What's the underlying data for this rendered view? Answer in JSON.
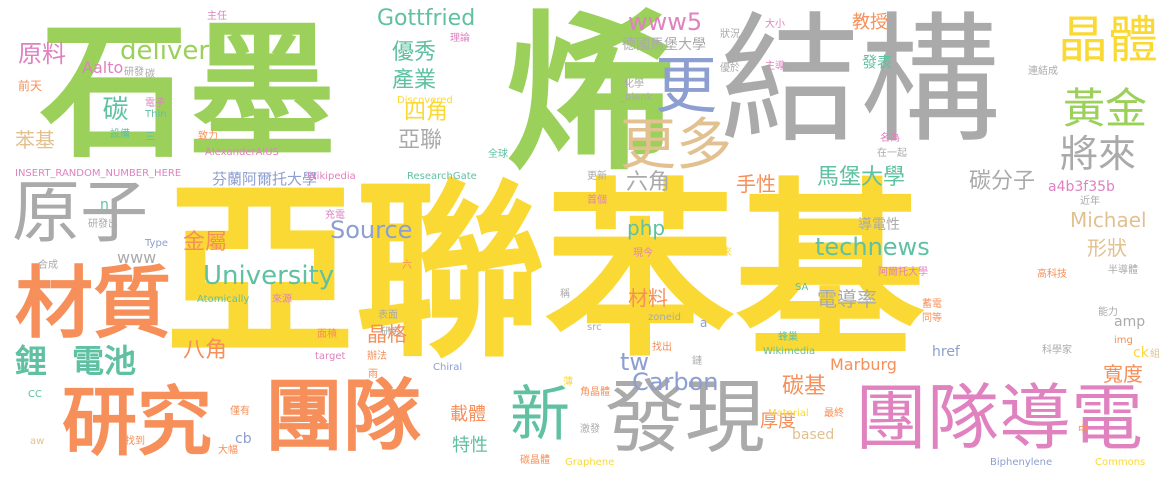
{
  "colors": {
    "green": "#9bd05a",
    "gray": "#aaaaaa",
    "yellow": "#fbd935",
    "orange": "#f68f59",
    "pink": "#e081c0",
    "blue": "#8d9ed0",
    "teal": "#5fc0a2",
    "tan": "#e2c190",
    "background": "#ffffff"
  },
  "words": [
    {
      "text": "亞聯苯基",
      "color": "yellow"
    },
    {
      "text": "石墨",
      "color": "green"
    },
    {
      "text": "烯",
      "color": "green"
    },
    {
      "text": "結構",
      "color": "gray"
    },
    {
      "text": "團隊",
      "color": "orange"
    },
    {
      "text": "團隊導電",
      "color": "pink"
    },
    {
      "text": "發現",
      "color": "gray"
    },
    {
      "text": "研究",
      "color": "orange"
    },
    {
      "text": "材質",
      "color": "orange"
    },
    {
      "text": "原子",
      "color": "gray"
    },
    {
      "text": "更",
      "color": "blue"
    },
    {
      "text": "更多",
      "color": "tan"
    },
    {
      "text": "晶體",
      "color": "yellow"
    },
    {
      "text": "黃金",
      "color": "green"
    },
    {
      "text": "將來",
      "color": "gray"
    },
    {
      "text": "新",
      "color": "teal"
    },
    {
      "text": "鋰",
      "color": "teal"
    },
    {
      "text": "電池",
      "color": "teal"
    },
    {
      "text": "delivery",
      "color": "green"
    },
    {
      "text": "原料",
      "color": "pink"
    },
    {
      "text": "苯基",
      "color": "tan"
    },
    {
      "text": "碳",
      "color": "teal"
    },
    {
      "text": "Aalto",
      "color": "pink"
    },
    {
      "text": "Gottfried",
      "color": "teal"
    },
    {
      "text": "www5",
      "color": "pink"
    },
    {
      "text": "優秀",
      "color": "teal"
    },
    {
      "text": "產業",
      "color": "teal"
    },
    {
      "text": "教授",
      "color": "orange"
    },
    {
      "text": "四角",
      "color": "yellow"
    },
    {
      "text": "亞聯",
      "color": "gray"
    },
    {
      "text": "六角",
      "color": "gray"
    },
    {
      "text": "手性",
      "color": "orange"
    },
    {
      "text": "馬堡大學",
      "color": "teal"
    },
    {
      "text": "碳分子",
      "color": "gray"
    },
    {
      "text": "a4b3f35b",
      "color": "pink"
    },
    {
      "text": "金屬",
      "color": "orange"
    },
    {
      "text": "Source",
      "color": "blue"
    },
    {
      "text": "php",
      "color": "teal"
    },
    {
      "text": "technews",
      "color": "teal"
    },
    {
      "text": "Michael",
      "color": "tan"
    },
    {
      "text": "形狀",
      "color": "tan"
    },
    {
      "text": "導電性",
      "color": "gray"
    },
    {
      "text": "University",
      "color": "teal"
    },
    {
      "text": "材料",
      "color": "orange"
    },
    {
      "text": "電導率",
      "color": "gray"
    },
    {
      "text": "晶格",
      "color": "orange"
    },
    {
      "text": "八角",
      "color": "orange"
    },
    {
      "text": "tw",
      "color": "blue"
    },
    {
      "text": "Carbon",
      "color": "blue"
    },
    {
      "text": "碳基",
      "color": "orange"
    },
    {
      "text": "寬度",
      "color": "orange"
    },
    {
      "text": "載體",
      "color": "orange"
    },
    {
      "text": "特性",
      "color": "teal"
    },
    {
      "text": "厚度",
      "color": "orange"
    },
    {
      "text": "Marburg",
      "color": "orange"
    },
    {
      "text": "href",
      "color": "blue"
    },
    {
      "text": "ck",
      "color": "yellow"
    },
    {
      "text": "amp",
      "color": "gray"
    },
    {
      "text": "based",
      "color": "tan"
    },
    {
      "text": "cb",
      "color": "blue"
    },
    {
      "text": "www",
      "color": "gray"
    },
    {
      "text": "德國馬堡大學",
      "color": "gray"
    },
    {
      "text": "芬蘭阿爾托大學",
      "color": "blue"
    },
    {
      "text": "發表",
      "color": "teal"
    },
    {
      "text": "INSERT_RANDOM_NUMBER_HERE",
      "color": "pink"
    },
    {
      "text": "AlexanderAlUS",
      "color": "pink"
    },
    {
      "text": "Wikipedia",
      "color": "pink"
    },
    {
      "text": "ResearchGate",
      "color": "teal"
    },
    {
      "text": "Discovered",
      "color": "yellow"
    },
    {
      "text": "Thin",
      "color": "teal"
    },
    {
      "text": "前天",
      "color": "orange"
    },
    {
      "text": "主任",
      "color": "pink"
    },
    {
      "text": "理論",
      "color": "pink"
    },
    {
      "text": "研發",
      "color": "gray"
    },
    {
      "text": "碳",
      "color": "gray"
    },
    {
      "text": "電子",
      "color": "pink"
    },
    {
      "text": "設備",
      "color": "teal"
    },
    {
      "text": "三",
      "color": "teal"
    },
    {
      "text": "致力",
      "color": "orange"
    },
    {
      "text": "全球",
      "color": "teal"
    },
    {
      "text": "更新",
      "color": "gray"
    },
    {
      "text": "首個",
      "color": "pink"
    },
    {
      "text": "化學",
      "color": "gray"
    },
    {
      "text": "_blank",
      "color": "gray"
    },
    {
      "text": "優於",
      "color": "gray"
    },
    {
      "text": "狀況",
      "color": "gray"
    },
    {
      "text": "大小",
      "color": "pink"
    },
    {
      "text": "主導",
      "color": "pink"
    },
    {
      "text": "連結成",
      "color": "gray"
    },
    {
      "text": "名為",
      "color": "pink"
    },
    {
      "text": "在一起",
      "color": "gray"
    },
    {
      "text": "近年",
      "color": "gray"
    },
    {
      "text": "高科技",
      "color": "orange"
    },
    {
      "text": "半導體",
      "color": "gray"
    },
    {
      "text": "能力",
      "color": "gray"
    },
    {
      "text": "img",
      "color": "orange"
    },
    {
      "text": "科學家",
      "color": "gray"
    },
    {
      "text": "同等",
      "color": "orange"
    },
    {
      "text": "蓄電",
      "color": "orange"
    },
    {
      "text": "阿爾托大學",
      "color": "pink"
    },
    {
      "text": "SA",
      "color": "teal"
    },
    {
      "text": "zoneid",
      "color": "gray"
    },
    {
      "text": "a",
      "color": "blue"
    },
    {
      "text": "現今",
      "color": "pink"
    },
    {
      "text": "未來",
      "color": "yellow"
    },
    {
      "text": "充電",
      "color": "pink"
    },
    {
      "text": "研發出",
      "color": "gray"
    },
    {
      "text": "n",
      "color": "teal"
    },
    {
      "text": "Type",
      "color": "blue"
    },
    {
      "text": "合成",
      "color": "gray"
    },
    {
      "text": "六",
      "color": "orange"
    },
    {
      "text": "Atomically",
      "color": "teal"
    },
    {
      "text": "來源",
      "color": "pink"
    },
    {
      "text": "表面",
      "color": "gray"
    },
    {
      "text": "研究",
      "color": "gray"
    },
    {
      "text": "src",
      "color": "gray"
    },
    {
      "text": "稱",
      "color": "gray"
    },
    {
      "text": "面積",
      "color": "orange"
    },
    {
      "text": "target",
      "color": "pink"
    },
    {
      "text": "辦法",
      "color": "orange"
    },
    {
      "text": "Chiral",
      "color": "blue"
    },
    {
      "text": "找出",
      "color": "orange"
    },
    {
      "text": "鏈",
      "color": "gray"
    },
    {
      "text": "Wikimedia",
      "color": "teal"
    },
    {
      "text": "蜂巢",
      "color": "teal"
    },
    {
      "text": "CC",
      "color": "teal"
    },
    {
      "text": "雨",
      "color": "orange"
    },
    {
      "text": "薄",
      "color": "yellow"
    },
    {
      "text": "角晶體",
      "color": "orange"
    },
    {
      "text": "Material",
      "color": "yellow"
    },
    {
      "text": "最終",
      "color": "orange"
    },
    {
      "text": "僅有",
      "color": "orange"
    },
    {
      "text": "激發",
      "color": "gray"
    },
    {
      "text": "aw",
      "color": "tan"
    },
    {
      "text": "找到",
      "color": "orange"
    },
    {
      "text": "大幅",
      "color": "orange"
    },
    {
      "text": "碳晶體",
      "color": "orange"
    },
    {
      "text": "Graphene",
      "color": "yellow"
    },
    {
      "text": "Biphenylene",
      "color": "blue"
    },
    {
      "text": "中",
      "color": "orange"
    },
    {
      "text": "Commons",
      "color": "yellow"
    },
    {
      "text": "組",
      "color": "tan"
    }
  ]
}
